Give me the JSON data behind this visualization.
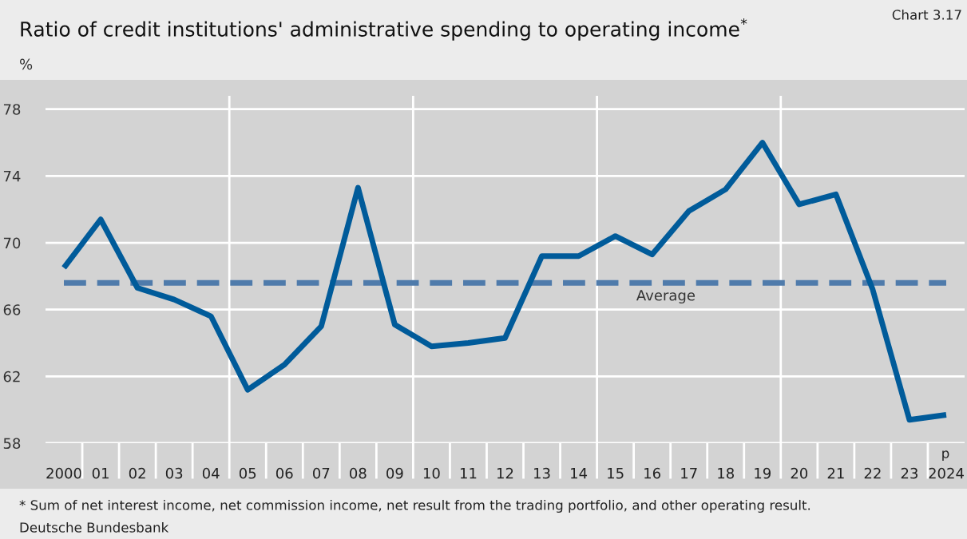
{
  "chart_data": {
    "type": "line",
    "title": "Ratio of credit institutions' administrative spending to operating income$^{*}$",
    "ylabel": "%",
    "categories": [
      "2000",
      "01",
      "02",
      "03",
      "04",
      "05",
      "06",
      "07",
      "08",
      "09",
      "10",
      "11",
      "12",
      "13",
      "14",
      "15",
      "16",
      "17",
      "18",
      "19",
      "20",
      "21",
      "22",
      "23",
      "2024"
    ],
    "series": [
      {
        "color": "#005b9a",
        "values": [
          68.5,
          71.4,
          67.3,
          66.6,
          65.6,
          61.2,
          62.7,
          65.0,
          73.3,
          65.1,
          63.8,
          64.0,
          64.3,
          69.2,
          69.2,
          70.4,
          69.3,
          71.9,
          73.2,
          76.0,
          72.3,
          72.9,
          67.2,
          59.4,
          59.7
        ]
      }
    ],
    "ylim": [
      58,
      78.8
    ],
    "yticks": [
      58,
      62,
      66,
      70,
      74,
      78
    ],
    "grid": true,
    "marker": "none",
    "line_style": "solid",
    "ref_lines": [
      {
        "axis": "y",
        "value": 67.6,
        "label": "Average",
        "color": "#4f7bab",
        "line_style": "dashed"
      }
    ],
    "annotations": [
      "Chart 3.17",
      "p",
      "* Sum of net interest income, net commission income, net result from the trading portfolio, and other operating result.",
      "Deutsche Bundesbank"
    ]
  }
}
